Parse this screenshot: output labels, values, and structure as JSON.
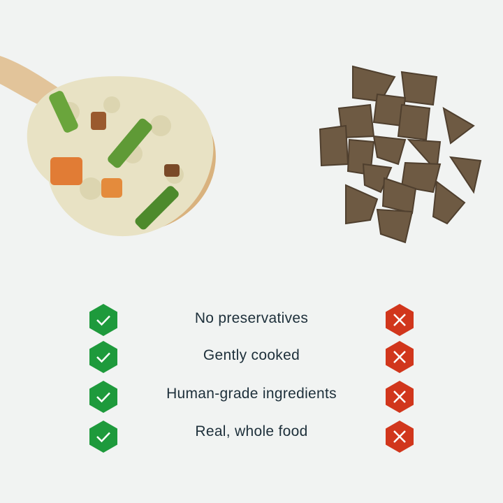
{
  "comparison": {
    "left_image": "fresh-cooked-food-on-wooden-spoon",
    "right_image": "dry-kibble-pile",
    "colors": {
      "check": "#1e9a3c",
      "cross": "#d1361c",
      "text": "#1d2f3a",
      "background": "#f1f3f2"
    },
    "rows": [
      {
        "label": "No preservatives",
        "left": "check-icon",
        "right": "x-icon"
      },
      {
        "label": "Gently cooked",
        "left": "check-icon",
        "right": "x-icon"
      },
      {
        "label": "Human-grade ingredients",
        "left": "check-icon",
        "right": "x-icon"
      },
      {
        "label": "Real, whole food",
        "left": "check-icon",
        "right": "x-icon"
      }
    ]
  }
}
